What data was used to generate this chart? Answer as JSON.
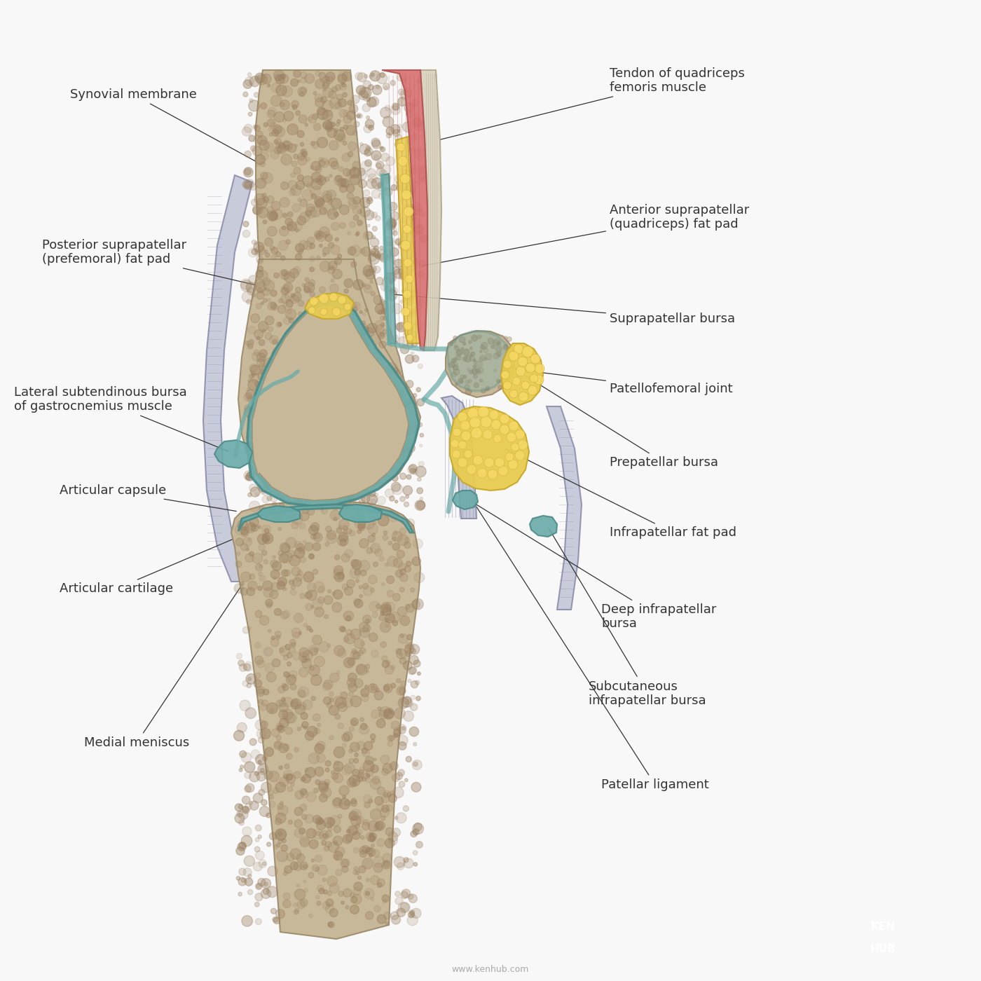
{
  "bg_color": "#f8f8f8",
  "bone_color": "#c8b89a",
  "bone_edge_color": "#a09070",
  "cartilage_color": "#6aaba8",
  "cartilage_edge_color": "#4a8a87",
  "fat_color": "#e8cc50",
  "fat_edge_color": "#c8a828",
  "capsule_color": "#c0c4d4",
  "capsule_edge_color": "#8888aa",
  "tendon_color": "#d8d0bc",
  "tendon_edge_color": "#b0a888",
  "muscle_color": "#d87070",
  "muscle_edge_color": "#b05050",
  "label_color": "#111111",
  "line_color": "#333333",
  "kenhub_blue": "#29aae2",
  "font_size": 13,
  "labels": {
    "synovial_membrane": "Synovial membrane",
    "tendon_quadriceps": "Tendon of quadriceps\nfemoris muscle",
    "ant_suprapatellar_fat": "Anterior suprapatellar\n(quadriceps) fat pad",
    "post_suprapatellar_fat": "Posterior suprapatellar\n(prefemoral) fat pad",
    "suprapatellar_bursa": "Suprapatellar bursa",
    "patellofemoral_joint": "Patellofemoral joint",
    "prepatellar_bursa": "Prepatellar bursa",
    "lat_subtendinous_bursa": "Lateral subtendinous bursa\nof gastrocnemius muscle",
    "articular_capsule": "Articular capsule",
    "infrapatellar_fat_pad": "Infrapatellar fat pad",
    "deep_infrapatellar_bursa": "Deep infrapatellar\nbursa",
    "articular_cartilage": "Articular cartilage",
    "subcutaneous_infrapatellar_bursa": "Subcutaneous\ninfrapatellar bursa",
    "medial_meniscus": "Medial meniscus",
    "patellar_ligament": "Patellar ligament"
  }
}
